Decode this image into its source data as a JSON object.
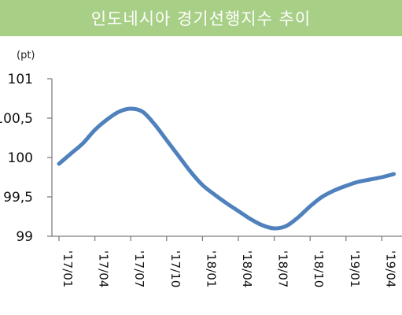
{
  "header": {
    "title": "인도네시아 경기선행지수 추이"
  },
  "chart_data": {
    "type": "line",
    "title": "인도네시아 경기선행지수 추이",
    "unit": "(pt)",
    "ylim": [
      99,
      101
    ],
    "y_ticks": [
      "99",
      "99,5",
      "100",
      "100,5",
      "101"
    ],
    "y_tick_values": [
      99,
      99.5,
      100,
      100.5,
      101
    ],
    "x_labels": [
      "'17/01",
      "'17/04",
      "'17/07",
      "'17/10",
      "'18/01",
      "'18/04",
      "'18/07",
      "'18/10",
      "'19/01",
      "'19/04"
    ],
    "series": [
      {
        "color": "#4f81bd",
        "x": [
          0,
          1,
          2,
          3,
          4,
          5,
          6,
          7,
          8,
          9,
          10,
          11,
          12,
          13,
          14,
          15,
          16,
          17,
          18,
          19,
          20,
          21,
          22,
          23,
          24,
          25,
          26,
          27,
          28
        ],
        "values": [
          99.92,
          100.05,
          100.18,
          100.35,
          100.48,
          100.58,
          100.62,
          100.58,
          100.42,
          100.22,
          100.02,
          99.82,
          99.65,
          99.53,
          99.42,
          99.32,
          99.22,
          99.14,
          99.1,
          99.13,
          99.24,
          99.38,
          99.5,
          99.58,
          99.64,
          99.69,
          99.72,
          99.75,
          99.79
        ]
      }
    ],
    "grid": false,
    "legend": "none"
  }
}
